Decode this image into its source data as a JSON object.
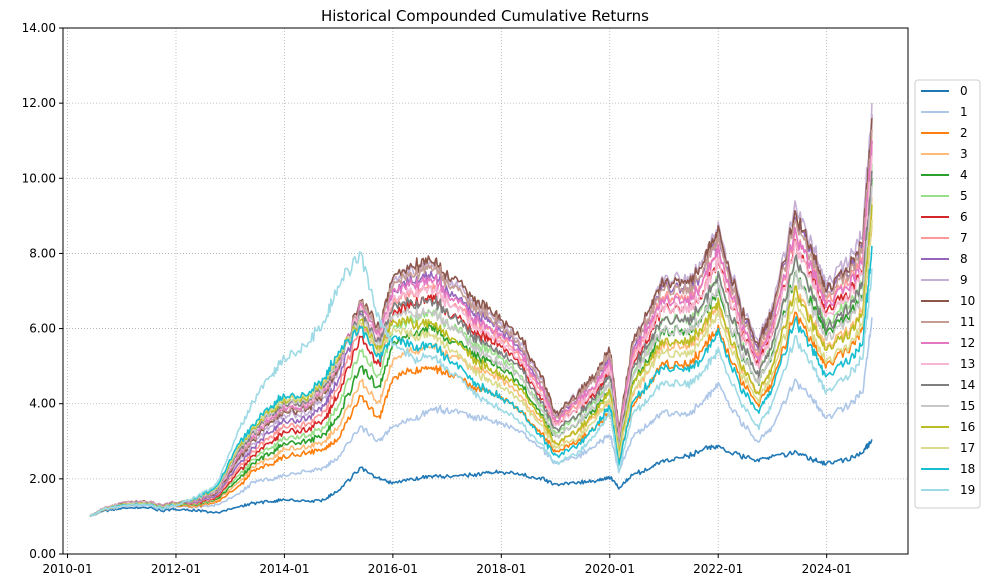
{
  "chart_data": {
    "type": "line",
    "title": "Historical Compounded Cumulative Returns",
    "xlabel": "",
    "ylabel": "",
    "x_ticks": [
      "2010-01",
      "2012-01",
      "2014-01",
      "2016-01",
      "2018-01",
      "2020-01",
      "2022-01",
      "2024-01"
    ],
    "x_range": [
      "2009-12",
      "2025-07"
    ],
    "y_ticks": [
      "0.00",
      "2.00",
      "4.00",
      "6.00",
      "8.00",
      "10.00",
      "12.00",
      "14.00"
    ],
    "ylim": [
      0,
      14
    ],
    "grid": true,
    "grid_style": "dotted",
    "legend_position": "right-outside",
    "x": [
      "2010-06",
      "2010-09",
      "2011-01",
      "2011-06",
      "2011-10",
      "2012-01",
      "2012-06",
      "2012-10",
      "2013-03",
      "2013-06",
      "2013-10",
      "2014-01",
      "2014-06",
      "2014-10",
      "2015-01",
      "2015-06",
      "2015-10",
      "2016-01",
      "2016-06",
      "2016-10",
      "2017-01",
      "2017-06",
      "2017-10",
      "2018-01",
      "2018-06",
      "2018-10",
      "2019-01",
      "2019-06",
      "2019-10",
      "2020-01",
      "2020-03",
      "2020-06",
      "2020-10",
      "2021-01",
      "2021-06",
      "2021-10",
      "2022-01",
      "2022-06",
      "2022-10",
      "2023-01",
      "2023-06",
      "2023-10",
      "2024-01",
      "2024-06",
      "2024-09",
      "2024-11"
    ],
    "series": [
      {
        "name": "0",
        "color": "#1f77b4",
        "values": [
          1.0,
          1.15,
          1.2,
          1.25,
          1.15,
          1.2,
          1.15,
          1.1,
          1.25,
          1.35,
          1.4,
          1.45,
          1.4,
          1.45,
          1.7,
          2.3,
          2.0,
          1.9,
          2.0,
          2.1,
          2.05,
          2.1,
          2.15,
          2.2,
          2.1,
          2.0,
          1.85,
          1.9,
          1.95,
          2.05,
          1.75,
          2.1,
          2.3,
          2.5,
          2.6,
          2.8,
          2.85,
          2.6,
          2.5,
          2.6,
          2.7,
          2.5,
          2.4,
          2.55,
          2.7,
          3.05
        ]
      },
      {
        "name": "1",
        "color": "#aec7e8",
        "values": [
          1.0,
          1.17,
          1.25,
          1.3,
          1.2,
          1.28,
          1.25,
          1.3,
          1.6,
          1.9,
          2.0,
          2.1,
          2.2,
          2.3,
          2.6,
          3.4,
          3.0,
          3.4,
          3.6,
          3.9,
          3.8,
          3.7,
          3.55,
          3.5,
          3.2,
          2.8,
          2.4,
          2.6,
          2.9,
          3.2,
          2.2,
          3.1,
          3.5,
          3.8,
          3.7,
          4.1,
          4.5,
          3.5,
          3.0,
          3.4,
          4.6,
          4.1,
          3.6,
          4.0,
          4.3,
          6.3
        ]
      },
      {
        "name": "2",
        "color": "#ff7f0e",
        "values": [
          1.0,
          1.18,
          1.27,
          1.33,
          1.22,
          1.3,
          1.28,
          1.38,
          1.8,
          2.2,
          2.4,
          2.6,
          2.7,
          2.8,
          3.1,
          4.2,
          3.6,
          4.7,
          4.9,
          5.0,
          4.8,
          4.5,
          4.3,
          4.2,
          3.7,
          3.2,
          2.7,
          3.0,
          3.4,
          3.8,
          2.5,
          3.9,
          4.6,
          5.1,
          5.0,
          5.5,
          6.0,
          4.6,
          4.0,
          4.6,
          6.4,
          5.6,
          5.0,
          5.5,
          6.0,
          8.9
        ]
      },
      {
        "name": "3",
        "color": "#ffbb78",
        "values": [
          1.0,
          1.18,
          1.28,
          1.34,
          1.23,
          1.31,
          1.3,
          1.42,
          1.9,
          2.3,
          2.55,
          2.8,
          2.85,
          3.0,
          3.4,
          4.6,
          4.0,
          5.2,
          5.4,
          5.6,
          5.3,
          5.0,
          4.8,
          4.7,
          4.1,
          3.5,
          2.9,
          3.3,
          3.7,
          4.1,
          2.7,
          4.2,
          5.0,
          5.6,
          5.5,
          6.0,
          6.6,
          5.0,
          4.3,
          5.0,
          7.0,
          6.2,
          5.5,
          6.0,
          6.5,
          9.5
        ]
      },
      {
        "name": "4",
        "color": "#2ca02c",
        "values": [
          1.0,
          1.19,
          1.29,
          1.35,
          1.24,
          1.32,
          1.32,
          1.45,
          2.0,
          2.4,
          2.7,
          2.95,
          3.0,
          3.2,
          3.7,
          5.0,
          4.4,
          5.6,
          5.9,
          6.1,
          5.7,
          5.4,
          5.1,
          5.0,
          4.4,
          3.7,
          3.1,
          3.5,
          3.9,
          4.4,
          2.8,
          4.5,
          5.3,
          6.0,
          5.9,
          6.4,
          7.0,
          5.3,
          4.6,
          5.3,
          7.4,
          6.6,
          5.9,
          6.4,
          6.9,
          10.0
        ]
      },
      {
        "name": "5",
        "color": "#98df8a",
        "values": [
          1.0,
          1.19,
          1.3,
          1.36,
          1.25,
          1.33,
          1.34,
          1.48,
          2.1,
          2.5,
          2.85,
          3.1,
          3.15,
          3.4,
          4.0,
          5.4,
          4.7,
          6.0,
          6.3,
          6.5,
          6.1,
          5.7,
          5.4,
          5.3,
          4.6,
          3.9,
          3.2,
          3.7,
          4.1,
          4.6,
          2.9,
          4.7,
          5.6,
          6.3,
          6.2,
          6.7,
          7.4,
          5.6,
          4.8,
          5.6,
          7.8,
          6.9,
          6.1,
          6.7,
          7.2,
          10.4
        ]
      },
      {
        "name": "6",
        "color": "#d62728",
        "values": [
          1.0,
          1.2,
          1.31,
          1.37,
          1.26,
          1.34,
          1.36,
          1.5,
          2.2,
          2.6,
          3.0,
          3.25,
          3.3,
          3.6,
          4.3,
          5.8,
          5.0,
          6.4,
          6.7,
          6.9,
          6.4,
          6.0,
          5.7,
          5.6,
          4.9,
          4.1,
          3.4,
          3.9,
          4.3,
          4.9,
          3.0,
          5.0,
          5.9,
          6.6,
          6.5,
          7.0,
          7.8,
          5.9,
          5.1,
          5.9,
          8.2,
          7.3,
          6.4,
          7.0,
          7.6,
          11.0
        ]
      },
      {
        "name": "7",
        "color": "#ff9896",
        "values": [
          1.0,
          1.2,
          1.32,
          1.38,
          1.27,
          1.35,
          1.38,
          1.53,
          2.3,
          2.7,
          3.15,
          3.4,
          3.45,
          3.8,
          4.5,
          6.1,
          5.3,
          6.7,
          7.0,
          7.2,
          6.7,
          6.3,
          6.0,
          5.8,
          5.1,
          4.3,
          3.5,
          4.0,
          4.5,
          5.1,
          3.1,
          5.2,
          6.1,
          6.9,
          6.8,
          7.3,
          8.1,
          6.1,
          5.3,
          6.1,
          8.5,
          7.6,
          6.7,
          7.3,
          7.9,
          11.3
        ]
      },
      {
        "name": "8",
        "color": "#9467bd",
        "values": [
          1.0,
          1.21,
          1.33,
          1.39,
          1.28,
          1.36,
          1.4,
          1.56,
          2.4,
          2.8,
          3.3,
          3.55,
          3.6,
          4.0,
          4.7,
          6.4,
          5.6,
          7.0,
          7.3,
          7.5,
          7.0,
          6.5,
          6.2,
          6.0,
          5.3,
          4.4,
          3.6,
          4.2,
          4.7,
          5.3,
          3.2,
          5.4,
          6.4,
          7.2,
          7.0,
          7.6,
          8.4,
          6.4,
          5.5,
          6.4,
          8.9,
          7.9,
          7.0,
          7.6,
          8.2,
          11.7
        ]
      },
      {
        "name": "9",
        "color": "#c5b0d5",
        "values": [
          1.0,
          1.21,
          1.34,
          1.4,
          1.29,
          1.37,
          1.42,
          1.6,
          2.5,
          2.9,
          3.45,
          3.7,
          3.75,
          4.2,
          4.9,
          6.7,
          5.9,
          7.3,
          7.6,
          7.8,
          7.3,
          6.8,
          6.4,
          6.2,
          5.5,
          4.6,
          3.7,
          4.3,
          4.8,
          5.5,
          3.3,
          5.6,
          6.6,
          7.4,
          7.3,
          7.9,
          8.7,
          6.6,
          5.7,
          6.6,
          9.2,
          8.2,
          7.2,
          7.9,
          8.5,
          12.0
        ]
      },
      {
        "name": "10",
        "color": "#8c564b",
        "values": [
          1.0,
          1.22,
          1.35,
          1.41,
          1.3,
          1.38,
          1.44,
          1.62,
          2.55,
          3.0,
          3.55,
          3.8,
          3.85,
          4.3,
          5.0,
          6.8,
          6.0,
          7.4,
          7.7,
          7.9,
          7.4,
          6.9,
          6.5,
          6.3,
          5.6,
          4.7,
          3.7,
          4.3,
          4.8,
          5.5,
          3.3,
          5.6,
          6.6,
          7.3,
          7.2,
          7.8,
          8.6,
          6.5,
          5.6,
          6.5,
          9.0,
          8.0,
          7.0,
          7.7,
          8.3,
          11.6
        ]
      },
      {
        "name": "11",
        "color": "#c49c94",
        "values": [
          1.0,
          1.22,
          1.35,
          1.41,
          1.29,
          1.38,
          1.45,
          1.64,
          2.6,
          3.05,
          3.6,
          3.85,
          3.9,
          4.35,
          5.05,
          6.7,
          5.9,
          7.2,
          7.5,
          7.7,
          7.2,
          6.7,
          6.3,
          6.1,
          5.4,
          4.5,
          3.6,
          4.2,
          4.7,
          5.4,
          3.2,
          5.5,
          6.4,
          7.1,
          7.0,
          7.6,
          8.4,
          6.3,
          5.4,
          6.3,
          8.8,
          7.8,
          6.8,
          7.5,
          8.1,
          11.3
        ]
      },
      {
        "name": "12",
        "color": "#e377c2",
        "values": [
          1.0,
          1.22,
          1.34,
          1.4,
          1.28,
          1.37,
          1.46,
          1.66,
          2.65,
          3.1,
          3.65,
          3.9,
          3.95,
          4.4,
          5.1,
          6.6,
          5.8,
          7.0,
          7.2,
          7.4,
          6.9,
          6.4,
          6.0,
          5.9,
          5.2,
          4.4,
          3.5,
          4.1,
          4.5,
          5.2,
          3.1,
          5.3,
          6.2,
          6.8,
          6.7,
          7.3,
          8.1,
          6.1,
          5.2,
          6.1,
          8.5,
          7.5,
          6.6,
          7.2,
          7.8,
          11.0
        ]
      },
      {
        "name": "13",
        "color": "#f7b6d2",
        "values": [
          1.0,
          1.22,
          1.33,
          1.39,
          1.27,
          1.36,
          1.47,
          1.68,
          2.7,
          3.15,
          3.7,
          3.95,
          4.0,
          4.45,
          5.15,
          6.5,
          5.7,
          6.8,
          7.0,
          7.1,
          6.7,
          6.2,
          5.8,
          5.7,
          5.0,
          4.2,
          3.4,
          3.9,
          4.4,
          5.0,
          3.0,
          5.1,
          6.0,
          6.6,
          6.5,
          7.0,
          7.8,
          5.9,
          5.0,
          5.9,
          8.2,
          7.2,
          6.3,
          6.9,
          7.5,
          10.6
        ]
      },
      {
        "name": "14",
        "color": "#7f7f7f",
        "values": [
          1.0,
          1.21,
          1.32,
          1.38,
          1.26,
          1.35,
          1.48,
          1.7,
          2.75,
          3.2,
          3.75,
          4.0,
          4.05,
          4.5,
          5.2,
          6.4,
          5.6,
          6.6,
          6.7,
          6.8,
          6.4,
          5.9,
          5.5,
          5.4,
          4.8,
          4.0,
          3.3,
          3.7,
          4.2,
          4.8,
          2.9,
          4.9,
          5.7,
          6.3,
          6.2,
          6.7,
          7.4,
          5.6,
          4.8,
          5.6,
          7.8,
          6.9,
          6.0,
          6.6,
          7.2,
          10.2
        ]
      },
      {
        "name": "15",
        "color": "#c7c7c7",
        "values": [
          1.0,
          1.21,
          1.31,
          1.37,
          1.25,
          1.34,
          1.49,
          1.72,
          2.8,
          3.25,
          3.8,
          4.05,
          4.1,
          4.55,
          5.25,
          6.3,
          5.5,
          6.4,
          6.4,
          6.5,
          6.1,
          5.6,
          5.2,
          5.1,
          4.6,
          3.8,
          3.1,
          3.5,
          4.0,
          4.6,
          2.8,
          4.7,
          5.5,
          6.0,
          5.9,
          6.4,
          7.1,
          5.3,
          4.6,
          5.3,
          7.4,
          6.5,
          5.7,
          6.3,
          6.8,
          9.8
        ]
      },
      {
        "name": "16",
        "color": "#bcbd22",
        "values": [
          1.0,
          1.2,
          1.3,
          1.36,
          1.24,
          1.33,
          1.5,
          1.74,
          2.85,
          3.3,
          3.85,
          4.1,
          4.15,
          4.6,
          5.3,
          6.2,
          5.4,
          6.2,
          6.1,
          6.2,
          5.8,
          5.3,
          4.9,
          4.8,
          4.3,
          3.6,
          2.9,
          3.3,
          3.8,
          4.4,
          2.7,
          4.5,
          5.2,
          5.7,
          5.6,
          6.1,
          6.7,
          5.0,
          4.3,
          5.0,
          7.0,
          6.1,
          5.4,
          5.9,
          6.4,
          9.3
        ]
      },
      {
        "name": "17",
        "color": "#dbdb8d",
        "values": [
          1.0,
          1.2,
          1.29,
          1.35,
          1.23,
          1.32,
          1.51,
          1.76,
          2.9,
          3.35,
          3.9,
          4.15,
          4.2,
          4.65,
          5.35,
          6.1,
          5.3,
          6.0,
          5.8,
          5.9,
          5.5,
          5.0,
          4.6,
          4.5,
          4.0,
          3.4,
          2.8,
          3.1,
          3.6,
          4.2,
          2.6,
          4.3,
          5.0,
          5.4,
          5.3,
          5.8,
          6.4,
          4.8,
          4.1,
          4.8,
          6.7,
          5.8,
          5.1,
          5.6,
          6.1,
          8.9
        ]
      },
      {
        "name": "18",
        "color": "#17becf",
        "values": [
          1.0,
          1.19,
          1.28,
          1.34,
          1.22,
          1.31,
          1.52,
          1.78,
          2.95,
          3.4,
          3.95,
          4.2,
          4.25,
          4.7,
          5.4,
          6.0,
          5.2,
          5.8,
          5.5,
          5.6,
          5.2,
          4.7,
          4.3,
          4.2,
          3.7,
          3.1,
          2.6,
          2.9,
          3.4,
          4.0,
          2.4,
          4.0,
          4.6,
          5.0,
          4.9,
          5.3,
          5.9,
          4.4,
          3.8,
          4.4,
          6.2,
          5.4,
          4.7,
          5.2,
          5.6,
          8.2
        ]
      },
      {
        "name": "19",
        "color": "#9edae5",
        "values": [
          1.0,
          1.19,
          1.27,
          1.33,
          1.21,
          1.3,
          1.55,
          1.85,
          3.3,
          4.0,
          4.8,
          5.2,
          5.6,
          6.2,
          7.2,
          8.0,
          6.2,
          5.6,
          5.2,
          5.3,
          4.9,
          4.4,
          4.0,
          3.9,
          3.4,
          2.9,
          2.4,
          2.7,
          3.2,
          3.8,
          2.2,
          3.7,
          4.2,
          4.6,
          4.5,
          4.9,
          5.4,
          4.0,
          3.4,
          4.0,
          5.7,
          5.0,
          4.3,
          4.8,
          5.2,
          7.6
        ]
      }
    ]
  }
}
